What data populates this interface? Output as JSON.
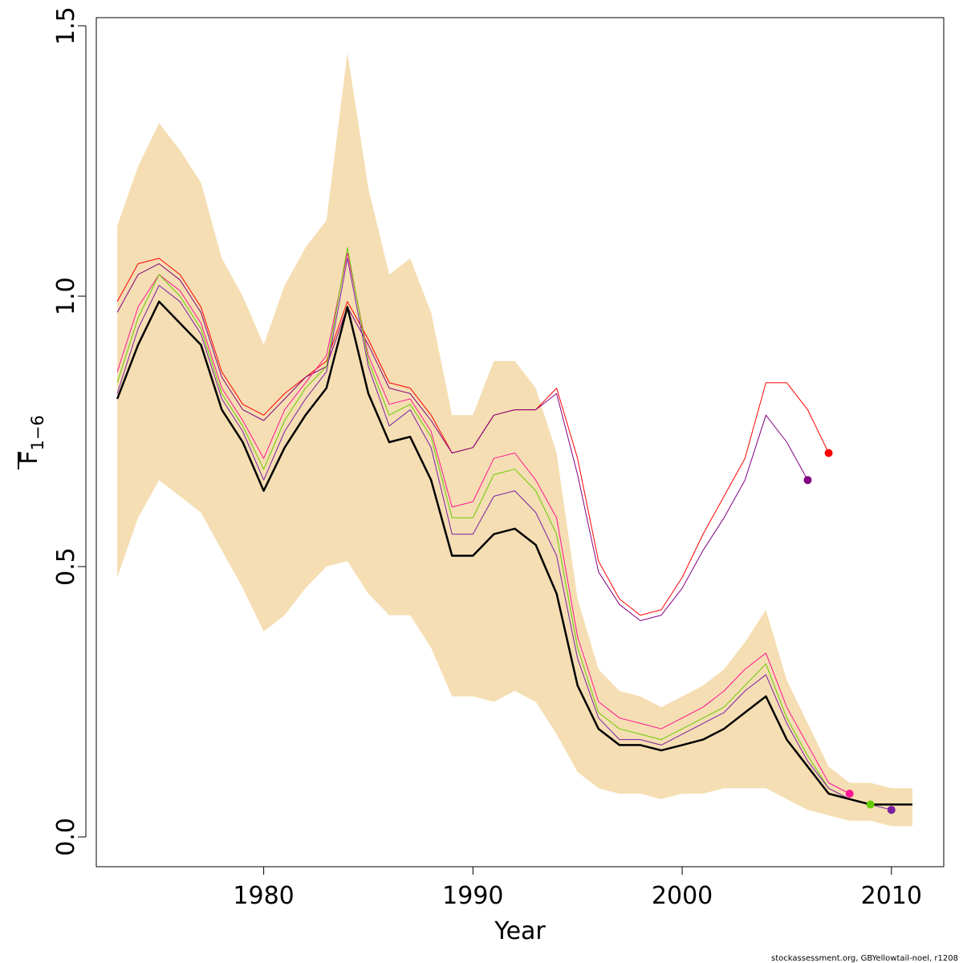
{
  "chart_data": {
    "type": "line",
    "title": "",
    "xlabel": "Year",
    "ylabel_main": "F",
    "ylabel_sub": "1−6",
    "xlim": [
      1972,
      2012.5
    ],
    "ylim": [
      -0.055,
      1.515
    ],
    "x_ticks": [
      1980,
      1990,
      2000,
      2010
    ],
    "y_ticks": [
      0.0,
      0.5,
      1.0,
      1.5
    ],
    "y_tick_labels": [
      "0.0",
      "0.5",
      "1.0",
      "1.5"
    ],
    "grid": false,
    "legend": "none",
    "colors": {
      "band": "#f5deb3",
      "base": "#000000",
      "retro_2010": "#7b1fa2",
      "retro_2009": "#66cc00",
      "retro_2008": "#ff1493",
      "retro_2007": "#ff0000",
      "retro_2006": "#800080"
    },
    "band": {
      "x": [
        1973,
        1974,
        1975,
        1976,
        1977,
        1978,
        1979,
        1980,
        1981,
        1982,
        1983,
        1984,
        1985,
        1986,
        1987,
        1988,
        1989,
        1990,
        1991,
        1992,
        1993,
        1994,
        1995,
        1996,
        1997,
        1998,
        1999,
        2000,
        2001,
        2002,
        2003,
        2004,
        2005,
        2006,
        2007,
        2008,
        2009,
        2010,
        2011
      ],
      "upper": [
        1.13,
        1.24,
        1.32,
        1.27,
        1.21,
        1.07,
        1.0,
        0.91,
        1.02,
        1.09,
        1.14,
        1.45,
        1.2,
        1.04,
        1.07,
        0.97,
        0.78,
        0.78,
        0.88,
        0.88,
        0.83,
        0.71,
        0.44,
        0.31,
        0.27,
        0.26,
        0.24,
        0.26,
        0.28,
        0.31,
        0.36,
        0.42,
        0.29,
        0.21,
        0.13,
        0.1,
        0.1,
        0.09,
        0.09
      ],
      "lower": [
        0.48,
        0.59,
        0.66,
        0.63,
        0.6,
        0.53,
        0.46,
        0.38,
        0.41,
        0.46,
        0.5,
        0.51,
        0.45,
        0.41,
        0.41,
        0.35,
        0.26,
        0.26,
        0.25,
        0.27,
        0.25,
        0.19,
        0.12,
        0.09,
        0.08,
        0.08,
        0.07,
        0.08,
        0.08,
        0.09,
        0.09,
        0.09,
        0.07,
        0.05,
        0.04,
        0.03,
        0.03,
        0.02,
        0.02
      ]
    },
    "series": [
      {
        "key": "retro_2007",
        "x": [
          1973,
          1974,
          1975,
          1976,
          1977,
          1978,
          1979,
          1980,
          1981,
          1982,
          1983,
          1984,
          1985,
          1986,
          1987,
          1988,
          1989,
          1990,
          1991,
          1992,
          1993,
          1994,
          1995,
          1996,
          1997,
          1998,
          1999,
          2000,
          2001,
          2002,
          2003,
          2004,
          2005,
          2006,
          2007
        ],
        "values": [
          0.99,
          1.06,
          1.07,
          1.04,
          0.98,
          0.86,
          0.8,
          0.78,
          0.82,
          0.85,
          0.88,
          0.99,
          0.92,
          0.84,
          0.83,
          0.78,
          0.71,
          0.72,
          0.78,
          0.79,
          0.79,
          0.83,
          0.7,
          0.51,
          0.44,
          0.41,
          0.42,
          0.48,
          0.56,
          0.63,
          0.7,
          0.84,
          0.84,
          0.79,
          0.71
        ],
        "width": 1,
        "end_marker": true
      },
      {
        "key": "retro_2006",
        "x": [
          1973,
          1974,
          1975,
          1976,
          1977,
          1978,
          1979,
          1980,
          1981,
          1982,
          1983,
          1984,
          1985,
          1986,
          1987,
          1988,
          1989,
          1990,
          1991,
          1992,
          1993,
          1994,
          1995,
          1996,
          1997,
          1998,
          1999,
          2000,
          2001,
          2002,
          2003,
          2004,
          2005,
          2006
        ],
        "values": [
          0.97,
          1.04,
          1.06,
          1.03,
          0.97,
          0.85,
          0.79,
          0.77,
          0.81,
          0.85,
          0.87,
          0.98,
          0.91,
          0.83,
          0.82,
          0.77,
          0.71,
          0.72,
          0.78,
          0.79,
          0.79,
          0.82,
          0.67,
          0.49,
          0.43,
          0.4,
          0.41,
          0.46,
          0.53,
          0.59,
          0.66,
          0.78,
          0.73,
          0.66
        ],
        "width": 1,
        "end_marker": true
      },
      {
        "key": "retro_2008",
        "x": [
          1973,
          1974,
          1975,
          1976,
          1977,
          1978,
          1979,
          1980,
          1981,
          1982,
          1983,
          1984,
          1985,
          1986,
          1987,
          1988,
          1989,
          1990,
          1991,
          1992,
          1993,
          1994,
          1995,
          1996,
          1997,
          1998,
          1999,
          2000,
          2001,
          2002,
          2003,
          2004,
          2005,
          2006,
          2007,
          2008
        ],
        "values": [
          0.86,
          0.98,
          1.04,
          1.01,
          0.95,
          0.83,
          0.77,
          0.7,
          0.79,
          0.84,
          0.89,
          1.08,
          0.89,
          0.8,
          0.81,
          0.75,
          0.61,
          0.62,
          0.7,
          0.71,
          0.66,
          0.59,
          0.37,
          0.25,
          0.22,
          0.21,
          0.2,
          0.22,
          0.24,
          0.27,
          0.31,
          0.34,
          0.24,
          0.17,
          0.1,
          0.08
        ],
        "width": 1,
        "end_marker": true
      },
      {
        "key": "retro_2009",
        "x": [
          1973,
          1974,
          1975,
          1976,
          1977,
          1978,
          1979,
          1980,
          1981,
          1982,
          1983,
          1984,
          1985,
          1986,
          1987,
          1988,
          1989,
          1990,
          1991,
          1992,
          1993,
          1994,
          1995,
          1996,
          1997,
          1998,
          1999,
          2000,
          2001,
          2002,
          2003,
          2004,
          2005,
          2006,
          2007,
          2008,
          2009
        ],
        "values": [
          0.84,
          0.96,
          1.04,
          1.0,
          0.94,
          0.82,
          0.76,
          0.68,
          0.77,
          0.83,
          0.87,
          1.09,
          0.88,
          0.78,
          0.8,
          0.74,
          0.59,
          0.59,
          0.67,
          0.68,
          0.64,
          0.56,
          0.35,
          0.23,
          0.2,
          0.19,
          0.18,
          0.2,
          0.22,
          0.24,
          0.28,
          0.32,
          0.22,
          0.15,
          0.09,
          0.07,
          0.06
        ],
        "width": 1,
        "end_marker": true
      },
      {
        "key": "retro_2010",
        "x": [
          1973,
          1974,
          1975,
          1976,
          1977,
          1978,
          1979,
          1980,
          1981,
          1982,
          1983,
          1984,
          1985,
          1986,
          1987,
          1988,
          1989,
          1990,
          1991,
          1992,
          1993,
          1994,
          1995,
          1996,
          1997,
          1998,
          1999,
          2000,
          2001,
          2002,
          2003,
          2004,
          2005,
          2006,
          2007,
          2008,
          2009,
          2010
        ],
        "values": [
          0.82,
          0.94,
          1.02,
          0.99,
          0.93,
          0.81,
          0.75,
          0.66,
          0.75,
          0.81,
          0.86,
          1.07,
          0.87,
          0.76,
          0.79,
          0.72,
          0.56,
          0.56,
          0.63,
          0.64,
          0.6,
          0.52,
          0.33,
          0.22,
          0.18,
          0.18,
          0.17,
          0.19,
          0.21,
          0.23,
          0.27,
          0.3,
          0.21,
          0.14,
          0.09,
          0.07,
          0.06,
          0.05
        ],
        "width": 1,
        "end_marker": true
      },
      {
        "key": "base",
        "x": [
          1973,
          1974,
          1975,
          1976,
          1977,
          1978,
          1979,
          1980,
          1981,
          1982,
          1983,
          1984,
          1985,
          1986,
          1987,
          1988,
          1989,
          1990,
          1991,
          1992,
          1993,
          1994,
          1995,
          1996,
          1997,
          1998,
          1999,
          2000,
          2001,
          2002,
          2003,
          2004,
          2005,
          2006,
          2007,
          2008,
          2009,
          2010,
          2011
        ],
        "values": [
          0.81,
          0.91,
          0.99,
          0.95,
          0.91,
          0.79,
          0.73,
          0.64,
          0.72,
          0.78,
          0.83,
          0.98,
          0.82,
          0.73,
          0.74,
          0.66,
          0.52,
          0.52,
          0.56,
          0.57,
          0.54,
          0.45,
          0.28,
          0.2,
          0.17,
          0.17,
          0.16,
          0.17,
          0.18,
          0.2,
          0.23,
          0.26,
          0.18,
          0.13,
          0.08,
          0.07,
          0.06,
          0.06,
          0.06
        ],
        "width": 2.5,
        "end_marker": false
      }
    ],
    "credit": "stockassessment.org, GBYellowtail-noel, r1208"
  }
}
